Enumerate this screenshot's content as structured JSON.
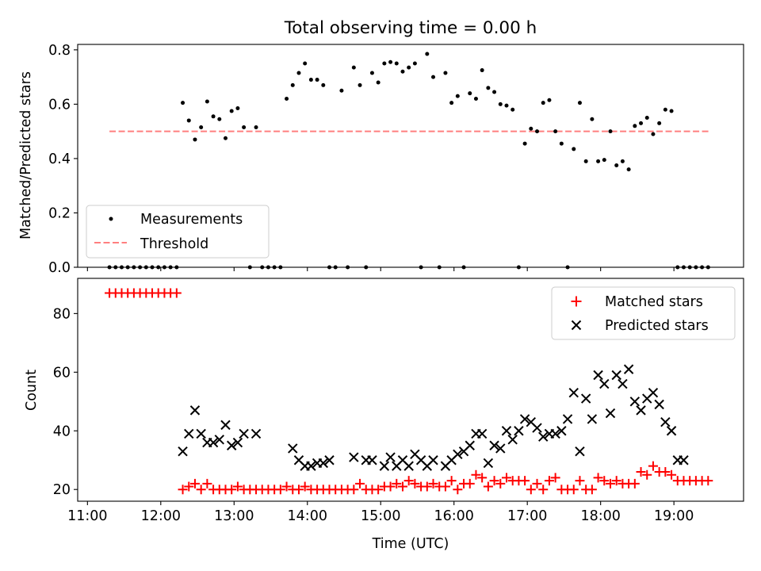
{
  "chart_data": [
    {
      "type": "scatter",
      "title": "Total observing time = 0.00 h",
      "xlabel": "",
      "ylabel": "Matched/Predicted stars",
      "xlim": [
        "10:52",
        "19:57"
      ],
      "ylim": [
        0,
        0.82
      ],
      "xticks": [
        "11:00",
        "12:00",
        "13:00",
        "14:00",
        "15:00",
        "16:00",
        "17:00",
        "18:00",
        "19:00"
      ],
      "yticks": [
        0.0,
        0.2,
        0.4,
        0.6,
        0.8
      ],
      "ytick_labels": [
        "0.0",
        "0.2",
        "0.4",
        "0.6",
        "0.8"
      ],
      "legend_position": "lower-left",
      "legend": {
        "measurements": "Measurements",
        "threshold": "Threshold"
      },
      "colors": {
        "measurements": "#000000",
        "threshold": "#ff7f7f"
      },
      "threshold": {
        "value": 0.5,
        "x_start": "11:18",
        "x_end": "19:30"
      },
      "series": [
        {
          "name": "Measurements",
          "x": [
            "11:18",
            "11:23",
            "11:28",
            "11:33",
            "11:38",
            "11:43",
            "11:48",
            "11:53",
            "11:58",
            "12:03",
            "12:08",
            "12:13",
            "12:18",
            "12:23",
            "12:28",
            "12:33",
            "12:38",
            "12:43",
            "12:48",
            "12:53",
            "12:58",
            "13:03",
            "13:08",
            "13:13",
            "13:18",
            "13:23",
            "13:28",
            "13:33",
            "13:38",
            "13:43",
            "13:48",
            "13:53",
            "13:58",
            "14:03",
            "14:08",
            "14:13",
            "14:18",
            "14:23",
            "14:28",
            "14:33",
            "14:38",
            "14:43",
            "14:48",
            "14:53",
            "14:58",
            "15:03",
            "15:08",
            "15:13",
            "15:18",
            "15:23",
            "15:28",
            "15:33",
            "15:38",
            "15:43",
            "15:48",
            "15:53",
            "15:58",
            "16:03",
            "16:08",
            "16:13",
            "16:18",
            "16:23",
            "16:28",
            "16:33",
            "16:38",
            "16:43",
            "16:48",
            "16:53",
            "16:58",
            "17:03",
            "17:08",
            "17:13",
            "17:18",
            "17:23",
            "17:28",
            "17:33",
            "17:38",
            "17:43",
            "17:48",
            "17:53",
            "17:58",
            "18:03",
            "18:08",
            "18:13",
            "18:18",
            "18:23",
            "18:28",
            "18:33",
            "18:38",
            "18:43",
            "18:48",
            "18:53",
            "18:58",
            "19:03",
            "19:08",
            "19:13",
            "19:18",
            "19:23",
            "19:28"
          ],
          "y": [
            0,
            0,
            0,
            0,
            0,
            0,
            0,
            0,
            0,
            0,
            0,
            0,
            0.605,
            0.54,
            0.47,
            0.515,
            0.61,
            0.555,
            0.545,
            0.475,
            0.575,
            0.585,
            0.515,
            0,
            0.515,
            0,
            0,
            0,
            0,
            0.62,
            0.67,
            0.715,
            0.75,
            0.69,
            0.69,
            0.67,
            0,
            0,
            0.65,
            0,
            0.735,
            0.67,
            0,
            0.715,
            0.68,
            0.75,
            0.755,
            0.75,
            0.72,
            0.735,
            0.75,
            0,
            0.785,
            0.7,
            0,
            0.715,
            0.605,
            0.63,
            0,
            0.64,
            0.62,
            0.725,
            0.66,
            0.645,
            0.6,
            0.595,
            0.58,
            0,
            0.455,
            0.51,
            0.5,
            0.605,
            0.615,
            0.5,
            0.455,
            0,
            0.435,
            0.605,
            0.39,
            0.545,
            0.39,
            0.395,
            0.5,
            0.375,
            0.39,
            0.36,
            0.52,
            0.53,
            0.55,
            0.49,
            0.53,
            0.58,
            0.575,
            0,
            0,
            0,
            0,
            0,
            0
          ]
        }
      ]
    },
    {
      "type": "scatter",
      "title": "",
      "xlabel": "Time (UTC)",
      "ylabel": "Count",
      "xlim": [
        "10:52",
        "19:57"
      ],
      "ylim": [
        16,
        92
      ],
      "xticks": [
        "11:00",
        "12:00",
        "13:00",
        "14:00",
        "15:00",
        "16:00",
        "17:00",
        "18:00",
        "19:00"
      ],
      "yticks": [
        20,
        40,
        60,
        80
      ],
      "legend_position": "top-right",
      "colors": {
        "matched": "#ff0000",
        "predicted": "#000000"
      },
      "series": [
        {
          "name": "Matched stars",
          "marker": "plus",
          "x": [
            "11:18",
            "11:23",
            "11:28",
            "11:33",
            "11:38",
            "11:43",
            "11:48",
            "11:53",
            "11:58",
            "12:03",
            "12:08",
            "12:13",
            "12:18",
            "12:23",
            "12:28",
            "12:33",
            "12:38",
            "12:43",
            "12:48",
            "12:53",
            "12:58",
            "13:03",
            "13:08",
            "13:13",
            "13:18",
            "13:23",
            "13:28",
            "13:33",
            "13:38",
            "13:43",
            "13:48",
            "13:53",
            "13:58",
            "14:03",
            "14:08",
            "14:13",
            "14:18",
            "14:23",
            "14:28",
            "14:33",
            "14:38",
            "14:43",
            "14:48",
            "14:53",
            "14:58",
            "15:03",
            "15:08",
            "15:13",
            "15:18",
            "15:23",
            "15:28",
            "15:33",
            "15:38",
            "15:43",
            "15:48",
            "15:53",
            "15:58",
            "16:03",
            "16:08",
            "16:13",
            "16:18",
            "16:23",
            "16:28",
            "16:33",
            "16:38",
            "16:43",
            "16:48",
            "16:53",
            "16:58",
            "17:03",
            "17:08",
            "17:13",
            "17:18",
            "17:23",
            "17:28",
            "17:33",
            "17:38",
            "17:43",
            "17:48",
            "17:53",
            "17:58",
            "18:03",
            "18:08",
            "18:13",
            "18:18",
            "18:23",
            "18:28",
            "18:33",
            "18:38",
            "18:43",
            "18:48",
            "18:53",
            "18:58",
            "19:03",
            "19:08",
            "19:13",
            "19:18",
            "19:23",
            "19:28"
          ],
          "y": [
            87,
            87,
            87,
            87,
            87,
            87,
            87,
            87,
            87,
            87,
            87,
            87,
            20,
            21,
            22,
            20,
            22,
            20,
            20,
            20,
            20,
            21,
            20,
            20,
            20,
            20,
            20,
            20,
            20,
            21,
            20,
            20,
            21,
            20,
            20,
            20,
            20,
            20,
            20,
            20,
            20,
            22,
            20,
            20,
            20,
            21,
            21,
            22,
            21,
            23,
            22,
            21,
            21,
            22,
            21,
            21,
            23,
            20,
            22,
            22,
            25,
            24,
            21,
            23,
            22,
            24,
            23,
            23,
            23,
            20,
            22,
            20,
            23,
            24,
            20,
            20,
            20,
            23,
            20,
            20,
            24,
            23,
            22,
            23,
            22,
            22,
            22,
            26,
            25,
            28,
            26,
            26,
            25,
            23,
            23,
            23,
            23,
            23,
            23
          ]
        },
        {
          "name": "Predicted stars",
          "marker": "x",
          "x": [
            "12:18",
            "12:23",
            "12:28",
            "12:33",
            "12:38",
            "12:43",
            "12:48",
            "12:53",
            "12:58",
            "13:03",
            "13:08",
            "13:18",
            "13:48",
            "13:53",
            "13:58",
            "14:03",
            "14:08",
            "14:13",
            "14:18",
            "14:38",
            "14:48",
            "14:53",
            "15:03",
            "15:08",
            "15:13",
            "15:18",
            "15:23",
            "15:28",
            "15:33",
            "15:38",
            "15:43",
            "15:53",
            "15:58",
            "16:03",
            "16:08",
            "16:13",
            "16:18",
            "16:23",
            "16:28",
            "16:33",
            "16:38",
            "16:43",
            "16:48",
            "16:53",
            "16:58",
            "17:03",
            "17:08",
            "17:13",
            "17:18",
            "17:23",
            "17:28",
            "17:33",
            "17:38",
            "17:43",
            "17:48",
            "17:53",
            "17:58",
            "18:03",
            "18:08",
            "18:13",
            "18:18",
            "18:23",
            "18:28",
            "18:33",
            "18:38",
            "18:43",
            "18:48",
            "18:53",
            "18:58",
            "19:03",
            "19:08"
          ],
          "y": [
            33,
            39,
            47,
            39,
            36,
            36,
            37,
            42,
            35,
            36,
            39,
            39,
            34,
            30,
            28,
            28,
            29,
            29,
            30,
            31,
            30,
            30,
            28,
            31,
            28,
            30,
            28,
            32,
            30,
            28,
            30,
            28,
            30,
            32,
            33,
            35,
            39,
            39,
            29,
            35,
            34,
            40,
            37,
            40,
            44,
            43,
            41,
            38,
            39,
            39,
            40,
            44,
            53,
            33,
            51,
            44,
            59,
            56,
            46,
            59,
            56,
            61,
            50,
            47,
            51,
            53,
            49,
            43,
            40,
            30,
            30
          ]
        }
      ]
    }
  ]
}
